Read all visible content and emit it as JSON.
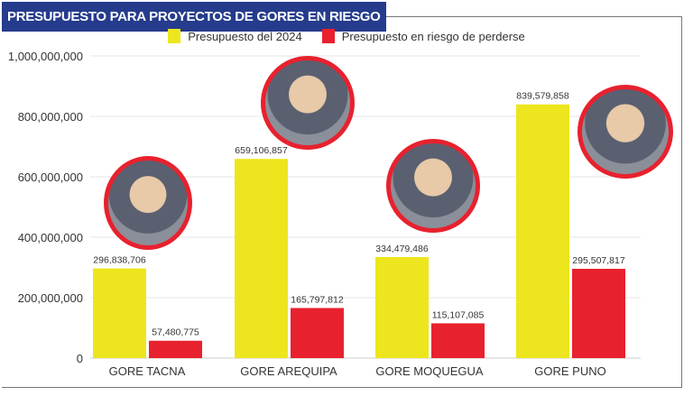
{
  "title": "PRESUPUESTO PARA PROYECTOS DE GORES EN RIESGO",
  "chart_data": {
    "type": "bar",
    "categories": [
      "GORE TACNA",
      "GORE AREQUIPA",
      "GORE MOQUEGUA",
      "GORE PUNO"
    ],
    "series": [
      {
        "name": "Presupuesto del 2024",
        "color": "#ede61e",
        "values": [
          296838706,
          659106857,
          334479486,
          839579858
        ],
        "labels": [
          "296,838,706",
          "659,106,857",
          "334,479,486",
          "839,579,858"
        ]
      },
      {
        "name": "Presupuesto en riesgo de perderse",
        "color": "#e8212e",
        "values": [
          57480775,
          165797812,
          115107085,
          295507817
        ],
        "labels": [
          "57,480,775",
          "165,797,812",
          "115,107,085",
          "295,507,817"
        ]
      }
    ],
    "ylim": [
      0,
      1000000000
    ],
    "yticks": [
      0,
      200000000,
      400000000,
      600000000,
      800000000,
      1000000000
    ],
    "ytick_labels": [
      "0",
      "200,000,000",
      "400,000,000",
      "600,000,000",
      "800,000,000",
      "1,000,000,000"
    ],
    "grid": true,
    "legend": "top-center"
  }
}
